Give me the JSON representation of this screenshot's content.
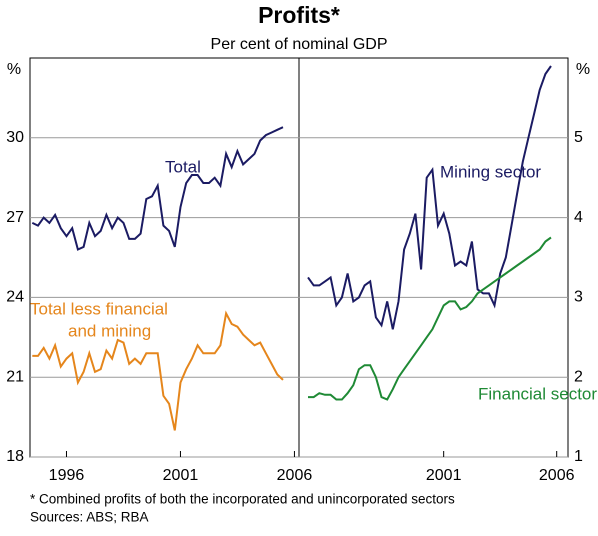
{
  "title": "Profits*",
  "subtitle": "Per cent of nominal GDP",
  "footnote": "*   Combined profits of both the incorporated and unincorporated sectors",
  "sources": "Sources: ABS; RBA",
  "chart_data": [
    {
      "type": "line",
      "y_unit": "%",
      "ytick_side": "left",
      "grid": true,
      "xlim": [
        1994.4,
        2006.2
      ],
      "xticks": [
        1996,
        2001,
        2006
      ],
      "ylim": [
        18,
        33
      ],
      "yticks": [
        18,
        21,
        24,
        27,
        30
      ],
      "x": [
        1994.5,
        1994.75,
        1995,
        1995.25,
        1995.5,
        1995.75,
        1996,
        1996.25,
        1996.5,
        1996.75,
        1997,
        1997.25,
        1997.5,
        1997.75,
        1998,
        1998.25,
        1998.5,
        1998.75,
        1999,
        1999.25,
        1999.5,
        1999.75,
        2000,
        2000.25,
        2000.5,
        2000.75,
        2001,
        2001.25,
        2001.5,
        2001.75,
        2002,
        2002.25,
        2002.5,
        2002.75,
        2003,
        2003.25,
        2003.5,
        2003.75,
        2004,
        2004.25,
        2004.5,
        2004.75,
        2005,
        2005.25,
        2005.5
      ],
      "series": [
        {
          "name": [
            "Total"
          ],
          "color": "#1b1b63",
          "values": [
            26.8,
            26.7,
            27.0,
            26.8,
            27.1,
            26.6,
            26.3,
            26.6,
            25.8,
            25.9,
            26.8,
            26.3,
            26.5,
            27.1,
            26.6,
            27.0,
            26.8,
            26.2,
            26.2,
            26.4,
            27.7,
            27.8,
            28.2,
            26.7,
            26.5,
            25.9,
            27.4,
            28.3,
            28.6,
            28.6,
            28.3,
            28.3,
            28.5,
            28.2,
            29.4,
            28.9,
            29.5,
            29.0,
            29.2,
            29.4,
            29.9,
            30.1,
            30.2,
            30.3,
            30.4
          ]
        },
        {
          "name": [
            "Total less financial",
            "and mining"
          ],
          "color": "#e5861c",
          "values": [
            21.8,
            21.8,
            22.1,
            21.7,
            22.2,
            21.4,
            21.7,
            21.9,
            20.8,
            21.2,
            21.9,
            21.2,
            21.3,
            22.0,
            21.7,
            22.4,
            22.3,
            21.5,
            21.7,
            21.5,
            21.9,
            21.9,
            21.9,
            20.3,
            20.0,
            19.0,
            20.8,
            21.3,
            21.7,
            22.2,
            21.9,
            21.9,
            21.9,
            22.2,
            23.4,
            23.0,
            22.9,
            22.6,
            22.4,
            22.2,
            22.3,
            21.9,
            21.5,
            21.1,
            20.9
          ]
        }
      ]
    },
    {
      "type": "line",
      "y_unit": "%",
      "ytick_side": "right",
      "grid": true,
      "xlim": [
        1994.6,
        2006.5
      ],
      "xticks": [
        2001,
        2006
      ],
      "ylim": [
        1,
        6
      ],
      "yticks": [
        1,
        2,
        3,
        4,
        5
      ],
      "x": [
        1995,
        1995.25,
        1995.5,
        1995.75,
        1996,
        1996.25,
        1996.5,
        1996.75,
        1997,
        1997.25,
        1997.5,
        1997.75,
        1998,
        1998.25,
        1998.5,
        1998.75,
        1999,
        1999.25,
        1999.5,
        1999.75,
        2000,
        2000.25,
        2000.5,
        2000.75,
        2001,
        2001.25,
        2001.5,
        2001.75,
        2002,
        2002.25,
        2002.5,
        2002.75,
        2003,
        2003.25,
        2003.5,
        2003.75,
        2004,
        2004.25,
        2004.5,
        2004.75,
        2005,
        2005.25,
        2005.5,
        2005.75
      ],
      "series": [
        {
          "name": [
            "Mining sector"
          ],
          "color": "#1b1b63",
          "values": [
            3.25,
            3.15,
            3.15,
            3.2,
            3.25,
            2.9,
            3.0,
            3.3,
            2.95,
            3.0,
            3.15,
            3.2,
            2.75,
            2.65,
            2.95,
            2.6,
            2.95,
            3.6,
            3.8,
            4.05,
            3.35,
            4.5,
            4.6,
            3.9,
            4.05,
            3.8,
            3.4,
            3.45,
            3.4,
            3.7,
            3.1,
            3.05,
            3.05,
            2.9,
            3.3,
            3.5,
            3.9,
            4.3,
            4.7,
            5.0,
            5.3,
            5.6,
            5.8,
            5.9
          ]
        },
        {
          "name": [
            "Financial sector"
          ],
          "color": "#1f8a35",
          "values": [
            1.75,
            1.75,
            1.8,
            1.78,
            1.78,
            1.72,
            1.72,
            1.8,
            1.9,
            2.1,
            2.15,
            2.15,
            2.0,
            1.75,
            1.72,
            1.85,
            2.0,
            2.1,
            2.2,
            2.3,
            2.4,
            2.5,
            2.6,
            2.75,
            2.9,
            2.95,
            2.95,
            2.85,
            2.88,
            2.95,
            3.05,
            3.1,
            3.15,
            3.2,
            3.25,
            3.3,
            3.35,
            3.4,
            3.45,
            3.5,
            3.55,
            3.6,
            3.7,
            3.75
          ]
        }
      ]
    }
  ]
}
